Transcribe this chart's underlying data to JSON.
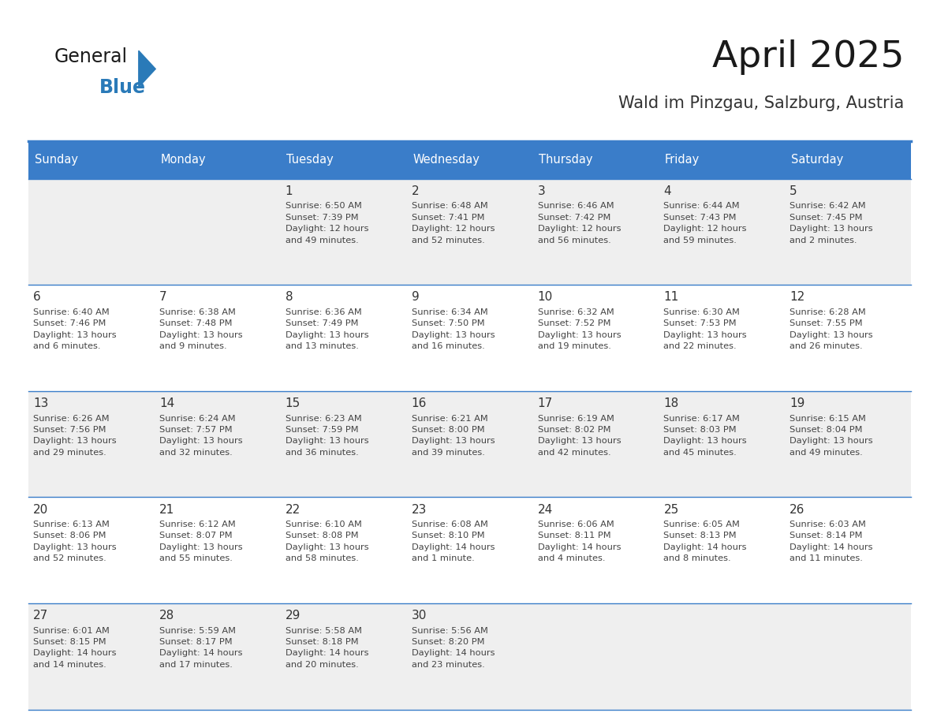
{
  "title": "April 2025",
  "subtitle": "Wald im Pinzgau, Salzburg, Austria",
  "days_of_week": [
    "Sunday",
    "Monday",
    "Tuesday",
    "Wednesday",
    "Thursday",
    "Friday",
    "Saturday"
  ],
  "header_bg": "#3A7DC9",
  "header_text": "#FFFFFF",
  "row_bg_odd": "#EFEFEF",
  "row_bg_even": "#FFFFFF",
  "cell_text_color": "#444444",
  "day_num_color": "#333333",
  "border_color": "#3A7DC9",
  "title_color": "#1a1a1a",
  "subtitle_color": "#333333",
  "logo_general_color": "#1a1a1a",
  "logo_blue_color": "#2A7AB8",
  "calendar_data": [
    [
      {
        "day": "",
        "info": ""
      },
      {
        "day": "",
        "info": ""
      },
      {
        "day": "1",
        "info": "Sunrise: 6:50 AM\nSunset: 7:39 PM\nDaylight: 12 hours\nand 49 minutes."
      },
      {
        "day": "2",
        "info": "Sunrise: 6:48 AM\nSunset: 7:41 PM\nDaylight: 12 hours\nand 52 minutes."
      },
      {
        "day": "3",
        "info": "Sunrise: 6:46 AM\nSunset: 7:42 PM\nDaylight: 12 hours\nand 56 minutes."
      },
      {
        "day": "4",
        "info": "Sunrise: 6:44 AM\nSunset: 7:43 PM\nDaylight: 12 hours\nand 59 minutes."
      },
      {
        "day": "5",
        "info": "Sunrise: 6:42 AM\nSunset: 7:45 PM\nDaylight: 13 hours\nand 2 minutes."
      }
    ],
    [
      {
        "day": "6",
        "info": "Sunrise: 6:40 AM\nSunset: 7:46 PM\nDaylight: 13 hours\nand 6 minutes."
      },
      {
        "day": "7",
        "info": "Sunrise: 6:38 AM\nSunset: 7:48 PM\nDaylight: 13 hours\nand 9 minutes."
      },
      {
        "day": "8",
        "info": "Sunrise: 6:36 AM\nSunset: 7:49 PM\nDaylight: 13 hours\nand 13 minutes."
      },
      {
        "day": "9",
        "info": "Sunrise: 6:34 AM\nSunset: 7:50 PM\nDaylight: 13 hours\nand 16 minutes."
      },
      {
        "day": "10",
        "info": "Sunrise: 6:32 AM\nSunset: 7:52 PM\nDaylight: 13 hours\nand 19 minutes."
      },
      {
        "day": "11",
        "info": "Sunrise: 6:30 AM\nSunset: 7:53 PM\nDaylight: 13 hours\nand 22 minutes."
      },
      {
        "day": "12",
        "info": "Sunrise: 6:28 AM\nSunset: 7:55 PM\nDaylight: 13 hours\nand 26 minutes."
      }
    ],
    [
      {
        "day": "13",
        "info": "Sunrise: 6:26 AM\nSunset: 7:56 PM\nDaylight: 13 hours\nand 29 minutes."
      },
      {
        "day": "14",
        "info": "Sunrise: 6:24 AM\nSunset: 7:57 PM\nDaylight: 13 hours\nand 32 minutes."
      },
      {
        "day": "15",
        "info": "Sunrise: 6:23 AM\nSunset: 7:59 PM\nDaylight: 13 hours\nand 36 minutes."
      },
      {
        "day": "16",
        "info": "Sunrise: 6:21 AM\nSunset: 8:00 PM\nDaylight: 13 hours\nand 39 minutes."
      },
      {
        "day": "17",
        "info": "Sunrise: 6:19 AM\nSunset: 8:02 PM\nDaylight: 13 hours\nand 42 minutes."
      },
      {
        "day": "18",
        "info": "Sunrise: 6:17 AM\nSunset: 8:03 PM\nDaylight: 13 hours\nand 45 minutes."
      },
      {
        "day": "19",
        "info": "Sunrise: 6:15 AM\nSunset: 8:04 PM\nDaylight: 13 hours\nand 49 minutes."
      }
    ],
    [
      {
        "day": "20",
        "info": "Sunrise: 6:13 AM\nSunset: 8:06 PM\nDaylight: 13 hours\nand 52 minutes."
      },
      {
        "day": "21",
        "info": "Sunrise: 6:12 AM\nSunset: 8:07 PM\nDaylight: 13 hours\nand 55 minutes."
      },
      {
        "day": "22",
        "info": "Sunrise: 6:10 AM\nSunset: 8:08 PM\nDaylight: 13 hours\nand 58 minutes."
      },
      {
        "day": "23",
        "info": "Sunrise: 6:08 AM\nSunset: 8:10 PM\nDaylight: 14 hours\nand 1 minute."
      },
      {
        "day": "24",
        "info": "Sunrise: 6:06 AM\nSunset: 8:11 PM\nDaylight: 14 hours\nand 4 minutes."
      },
      {
        "day": "25",
        "info": "Sunrise: 6:05 AM\nSunset: 8:13 PM\nDaylight: 14 hours\nand 8 minutes."
      },
      {
        "day": "26",
        "info": "Sunrise: 6:03 AM\nSunset: 8:14 PM\nDaylight: 14 hours\nand 11 minutes."
      }
    ],
    [
      {
        "day": "27",
        "info": "Sunrise: 6:01 AM\nSunset: 8:15 PM\nDaylight: 14 hours\nand 14 minutes."
      },
      {
        "day": "28",
        "info": "Sunrise: 5:59 AM\nSunset: 8:17 PM\nDaylight: 14 hours\nand 17 minutes."
      },
      {
        "day": "29",
        "info": "Sunrise: 5:58 AM\nSunset: 8:18 PM\nDaylight: 14 hours\nand 20 minutes."
      },
      {
        "day": "30",
        "info": "Sunrise: 5:56 AM\nSunset: 8:20 PM\nDaylight: 14 hours\nand 23 minutes."
      },
      {
        "day": "",
        "info": ""
      },
      {
        "day": "",
        "info": ""
      },
      {
        "day": "",
        "info": ""
      }
    ]
  ]
}
